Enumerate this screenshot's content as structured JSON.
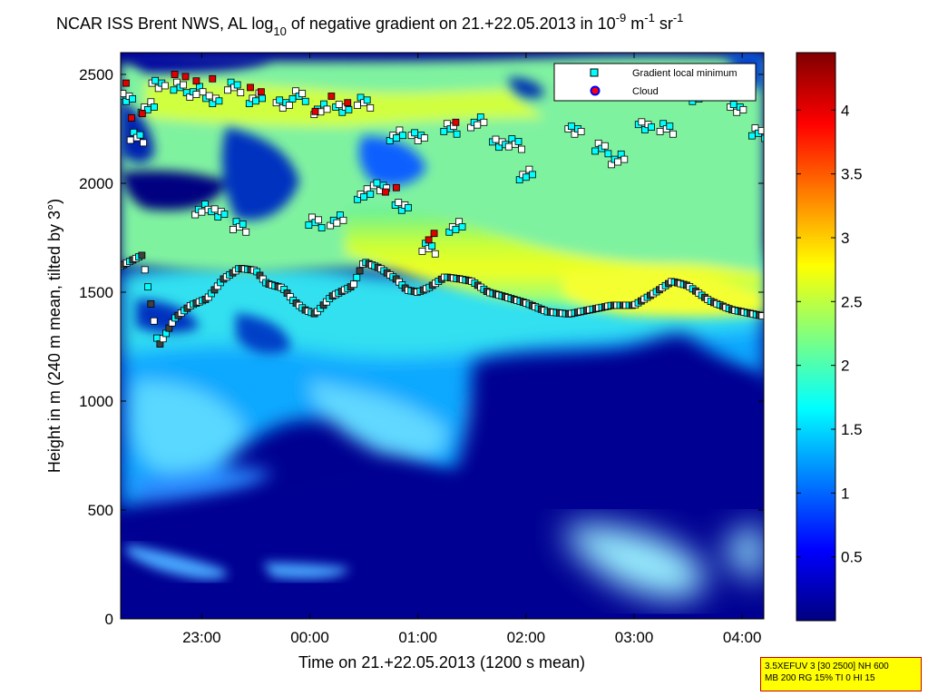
{
  "chart_data": {
    "type": "heatmap",
    "title": {
      "prefix": "NCAR ISS Brent NWS, AL log",
      "sub": "10",
      "middle": " of negative gradient on 21.+22.05.2013 in 10",
      "sup1": "-9",
      "unit1": " m",
      "sup2": "-1",
      "unit2": " sr",
      "sup3": "-1"
    },
    "xlabel": "Time on 21.+22.05.2013 (1200 s mean)",
    "ylabel": "Height in m (240 m mean, tilted by 3°)",
    "x_range_hours": [
      22.25,
      28.2
    ],
    "x_ticks": [
      {
        "value": 23,
        "label": "23:00"
      },
      {
        "value": 24,
        "label": "00:00"
      },
      {
        "value": 25,
        "label": "01:00"
      },
      {
        "value": 26,
        "label": "02:00"
      },
      {
        "value": 27,
        "label": "03:00"
      },
      {
        "value": 28,
        "label": "04:00"
      }
    ],
    "y_range": [
      0,
      2600
    ],
    "y_ticks": [
      0,
      500,
      1000,
      1500,
      2000,
      2500
    ],
    "colorbar": {
      "colormap": "jet",
      "range": [
        0,
        4.45
      ],
      "ticks": [
        0.5,
        1,
        1.5,
        2,
        2.5,
        3,
        3.5,
        4
      ]
    },
    "legend": {
      "placement": "top-right",
      "entries": [
        {
          "label": "Gradient local minimum",
          "marker": "square",
          "color": "#00ffff"
        },
        {
          "label": "Cloud",
          "marker": "circle",
          "color": "#ff0000",
          "edge": "#0000ff"
        }
      ]
    },
    "layer_line": {
      "name": "Gradient local minimum",
      "x": [
        22.25,
        22.45,
        22.6,
        22.75,
        22.9,
        23.05,
        23.2,
        23.35,
        23.5,
        23.6,
        23.75,
        23.85,
        23.95,
        24.05,
        24.2,
        24.4,
        24.5,
        24.65,
        24.8,
        24.9,
        25.0,
        25.1,
        25.25,
        25.4,
        25.5,
        25.65,
        25.8,
        26.0,
        26.2,
        26.4,
        26.6,
        26.8,
        27.0,
        27.2,
        27.35,
        27.5,
        27.7,
        27.9,
        28.1,
        28.2
      ],
      "y": [
        1620,
        1670,
        1250,
        1380,
        1440,
        1470,
        1560,
        1610,
        1600,
        1540,
        1520,
        1460,
        1420,
        1400,
        1480,
        1530,
        1640,
        1610,
        1560,
        1510,
        1500,
        1520,
        1570,
        1560,
        1550,
        1500,
        1480,
        1450,
        1410,
        1400,
        1420,
        1440,
        1440,
        1500,
        1550,
        1530,
        1460,
        1420,
        1400,
        1390
      ]
    },
    "extra_points": {
      "x": [
        22.3,
        22.4,
        22.5,
        22.6,
        22.8,
        22.95,
        23.1,
        23.3,
        23.5,
        23.75,
        23.9,
        24.1,
        24.3,
        24.5,
        24.8,
        25.0,
        25.3,
        25.55,
        25.75,
        25.9,
        26.0,
        26.45,
        26.7,
        26.85,
        27.1,
        27.3,
        27.6,
        27.95,
        28.15,
        23.0,
        23.15,
        23.35,
        24.5,
        24.65,
        24.05,
        24.25,
        24.85,
        25.1,
        25.35
      ],
      "y": [
        2400,
        2210,
        2350,
        2460,
        2440,
        2420,
        2390,
        2440,
        2390,
        2370,
        2400,
        2340,
        2350,
        2370,
        2220,
        2220,
        2250,
        2280,
        2190,
        2180,
        2040,
        2250,
        2160,
        2110,
        2270,
        2250,
        2400,
        2350,
        2230,
        1880,
        1870,
        1800,
        1950,
        1990,
        1820,
        1830,
        1900,
        1700,
        1800
      ]
    },
    "cloud_points": {
      "x": [
        22.3,
        22.35,
        22.45,
        22.75,
        22.85,
        22.95,
        23.1,
        23.45,
        23.55,
        24.05,
        24.2,
        24.35,
        24.7,
        24.8,
        25.1,
        25.15,
        25.35
      ],
      "y": [
        2460,
        2300,
        2320,
        2500,
        2490,
        2470,
        2480,
        2440,
        2420,
        2330,
        2400,
        2370,
        1960,
        1980,
        1740,
        1770,
        2280
      ]
    },
    "info_lines": [
      "3.5XEFUV 3 [30 2500] NH 600",
      "MB 200 RG 15% TI 0 HI 15"
    ]
  }
}
